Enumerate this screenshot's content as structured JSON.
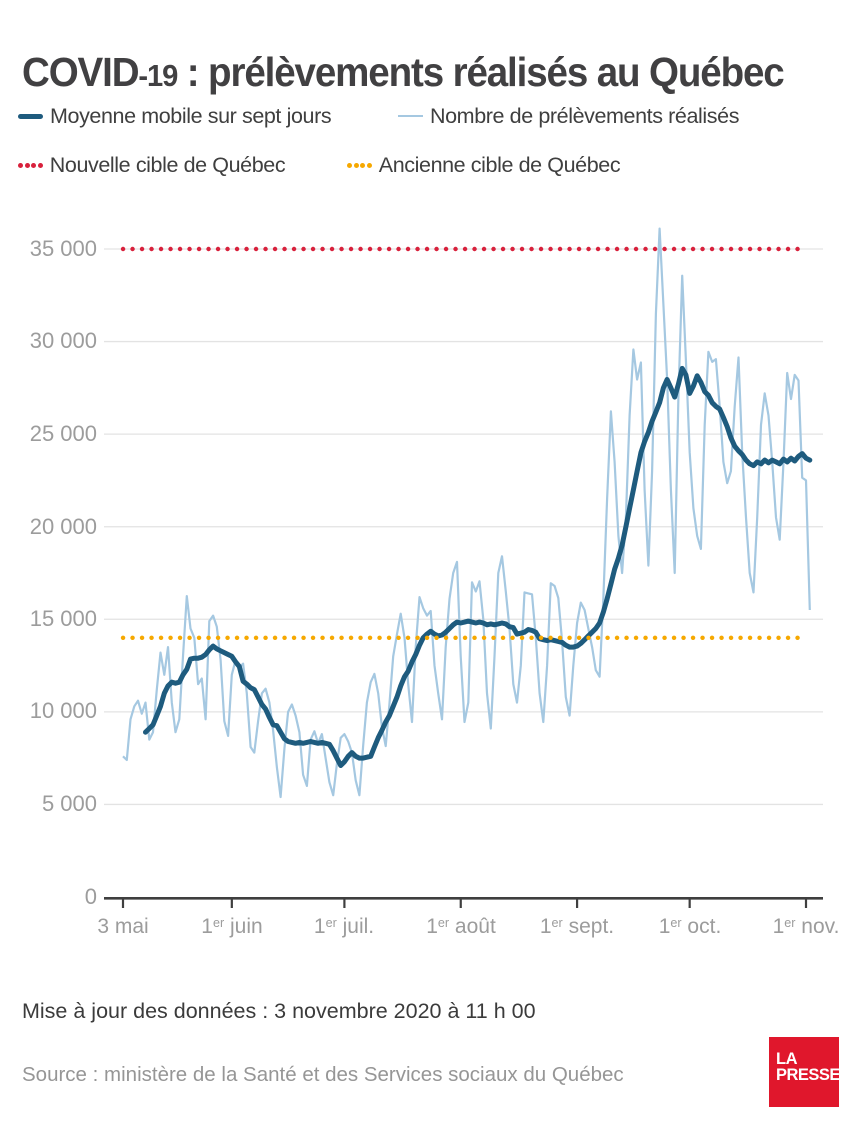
{
  "title": {
    "part1": "COVID",
    "part2": "-19",
    "part3": " : prélèvements réalisés au Québec",
    "full": "COVID-19 : prélèvements réalisés au Québec"
  },
  "legend": {
    "moving_average": "Moyenne mobile sur sept jours",
    "daily": "Nombre de prélèvements réalisés",
    "new_target": "Nouvelle cible de Québec",
    "old_target": "Ancienne cible de Québec"
  },
  "footer": {
    "updated": "Mise à jour des données : 3 novembre 2020 à 11 h 00",
    "source": "Source : ministère de la Santé et des Services sociaux du Québec"
  },
  "logo": {
    "line1": "LA",
    "line2": "PRESSE",
    "bg": "#e0172c"
  },
  "colors": {
    "moving_average": "#1e5b7e",
    "daily": "#a5c8e1",
    "new_target": "#d8213c",
    "old_target": "#f6a800",
    "grid": "#e3e3e3",
    "axis": "#3f3f3f",
    "tick_text": "#9c9c9c"
  },
  "chart_data": {
    "type": "line",
    "title": "COVID-19 : prélèvements réalisés au Québec",
    "start_date": "2020-05-03",
    "end_date": "2020-11-02",
    "ylim": [
      0,
      35000
    ],
    "grid": true,
    "y_ticks": [
      {
        "value": 35000,
        "label": "35 000"
      },
      {
        "value": 30000,
        "label": "30 000"
      },
      {
        "value": 25000,
        "label": "25 000"
      },
      {
        "value": 20000,
        "label": "20 000"
      },
      {
        "value": 15000,
        "label": "15 000"
      },
      {
        "value": 10000,
        "label": "10 000"
      },
      {
        "value": 5000,
        "label": "5 000"
      },
      {
        "value": 0,
        "label": "0"
      }
    ],
    "x_tick_labels": [
      {
        "num": "3",
        "sup": "",
        "rest": " mai",
        "day_index": 0
      },
      {
        "num": "1",
        "sup": "er",
        "rest": " juin",
        "day_index": 29
      },
      {
        "num": "1",
        "sup": "er",
        "rest": " juil.",
        "day_index": 59
      },
      {
        "num": "1",
        "sup": "er",
        "rest": " août",
        "day_index": 90
      },
      {
        "num": "1",
        "sup": "er",
        "rest": " sept.",
        "day_index": 121
      },
      {
        "num": "1",
        "sup": "er",
        "rest": " oct.",
        "day_index": 151
      },
      {
        "num": "1",
        "sup": "er",
        "rest": " nov.",
        "day_index": 182
      }
    ],
    "targets": [
      {
        "name": "Nouvelle cible de Québec",
        "value": 35000,
        "color": "#d8213c"
      },
      {
        "name": "Ancienne cible de Québec",
        "value": 14000,
        "color": "#f6a800"
      }
    ],
    "series": [
      {
        "name": "Nombre de prélèvements réalisés",
        "color": "#a5c8e1",
        "values": [
          7600,
          7400,
          9600,
          10300,
          10600,
          9900,
          10500,
          8500,
          8900,
          11200,
          13200,
          12000,
          13500,
          10500,
          8900,
          9600,
          13000,
          16250,
          14500,
          14000,
          11500,
          11800,
          9600,
          14900,
          15200,
          14600,
          12800,
          9500,
          8700,
          12000,
          12800,
          12400,
          12600,
          11000,
          8100,
          7800,
          9500,
          11000,
          11250,
          10500,
          9000,
          7000,
          5400,
          8000,
          10000,
          10400,
          9800,
          8900,
          6600,
          6000,
          8500,
          8950,
          8300,
          8800,
          7500,
          6200,
          5500,
          7200,
          8600,
          8800,
          8400,
          7800,
          6300,
          5500,
          8200,
          10500,
          11600,
          12050,
          11000,
          9200,
          8150,
          10400,
          13000,
          14200,
          15300,
          14000,
          11500,
          9450,
          13500,
          16200,
          15600,
          15200,
          15450,
          12500,
          11000,
          9600,
          13500,
          16100,
          17500,
          18100,
          13000,
          9450,
          10500,
          17000,
          16500,
          17050,
          15000,
          11000,
          9100,
          13000,
          17500,
          18400,
          16500,
          14500,
          11500,
          10500,
          12500,
          16450,
          16400,
          16350,
          14000,
          11000,
          9450,
          12500,
          16950,
          16800,
          16150,
          13800,
          10800,
          9800,
          12500,
          14800,
          15900,
          15500,
          14500,
          13500,
          12250,
          11900,
          16200,
          21500,
          26230,
          23500,
          19500,
          17500,
          20500,
          26000,
          29570,
          27950,
          28870,
          22000,
          17900,
          23000,
          31500,
          36100,
          32000,
          28000,
          22000,
          17500,
          27000,
          33560,
          29000,
          24000,
          21000,
          19500,
          18800,
          25500,
          29450,
          28900,
          29050,
          26500,
          23500,
          22350,
          23000,
          26500,
          29140,
          24000,
          20500,
          17500,
          16450,
          20500,
          25500,
          27200,
          26000,
          23500,
          20500,
          19300,
          23500,
          28300,
          26900,
          28200,
          27900,
          22650,
          22500,
          15500
        ]
      },
      {
        "name": "Moyenne mobile sur sept jours",
        "color": "#1e5b7e",
        "values": [
          null,
          null,
          null,
          null,
          null,
          null,
          8900,
          9100,
          9300,
          9800,
          10300,
          11000,
          11400,
          11600,
          11550,
          11600,
          12000,
          12300,
          12850,
          12900,
          12900,
          12950,
          13100,
          13350,
          13550,
          13400,
          13300,
          13200,
          13100,
          13000,
          12700,
          12450,
          11650,
          11500,
          11300,
          11200,
          10800,
          10400,
          10150,
          9700,
          9300,
          9250,
          8900,
          8550,
          8400,
          8350,
          8300,
          8350,
          8300,
          8350,
          8400,
          8350,
          8300,
          8350,
          8300,
          8250,
          7900,
          7500,
          7100,
          7300,
          7600,
          7800,
          7600,
          7500,
          7500,
          7550,
          7600,
          8100,
          8600,
          9000,
          9450,
          9800,
          10300,
          10800,
          11400,
          11900,
          12200,
          12700,
          13100,
          13600,
          14000,
          14200,
          14350,
          14200,
          14100,
          14150,
          14300,
          14500,
          14700,
          14850,
          14800,
          14850,
          14900,
          14850,
          14800,
          14850,
          14800,
          14700,
          14750,
          14700,
          14750,
          14800,
          14750,
          14600,
          14550,
          14200,
          14250,
          14300,
          14450,
          14400,
          14300,
          13950,
          13900,
          13850,
          13900,
          13850,
          13800,
          13750,
          13600,
          13500,
          13500,
          13550,
          13700,
          13900,
          14100,
          14300,
          14500,
          14800,
          15400,
          16100,
          16900,
          17700,
          18300,
          19000,
          20000,
          21000,
          22000,
          23000,
          24000,
          24600,
          25100,
          25700,
          26200,
          26700,
          27500,
          27950,
          27500,
          27000,
          27700,
          28550,
          28200,
          27200,
          27600,
          28150,
          27800,
          27300,
          27100,
          26700,
          26500,
          26350,
          25900,
          25400,
          24800,
          24350,
          24100,
          23900,
          23600,
          23400,
          23300,
          23500,
          23400,
          23600,
          23450,
          23600,
          23500,
          23400,
          23650,
          23500,
          23700,
          23550,
          23800,
          23950,
          23700,
          23600
        ]
      }
    ]
  }
}
